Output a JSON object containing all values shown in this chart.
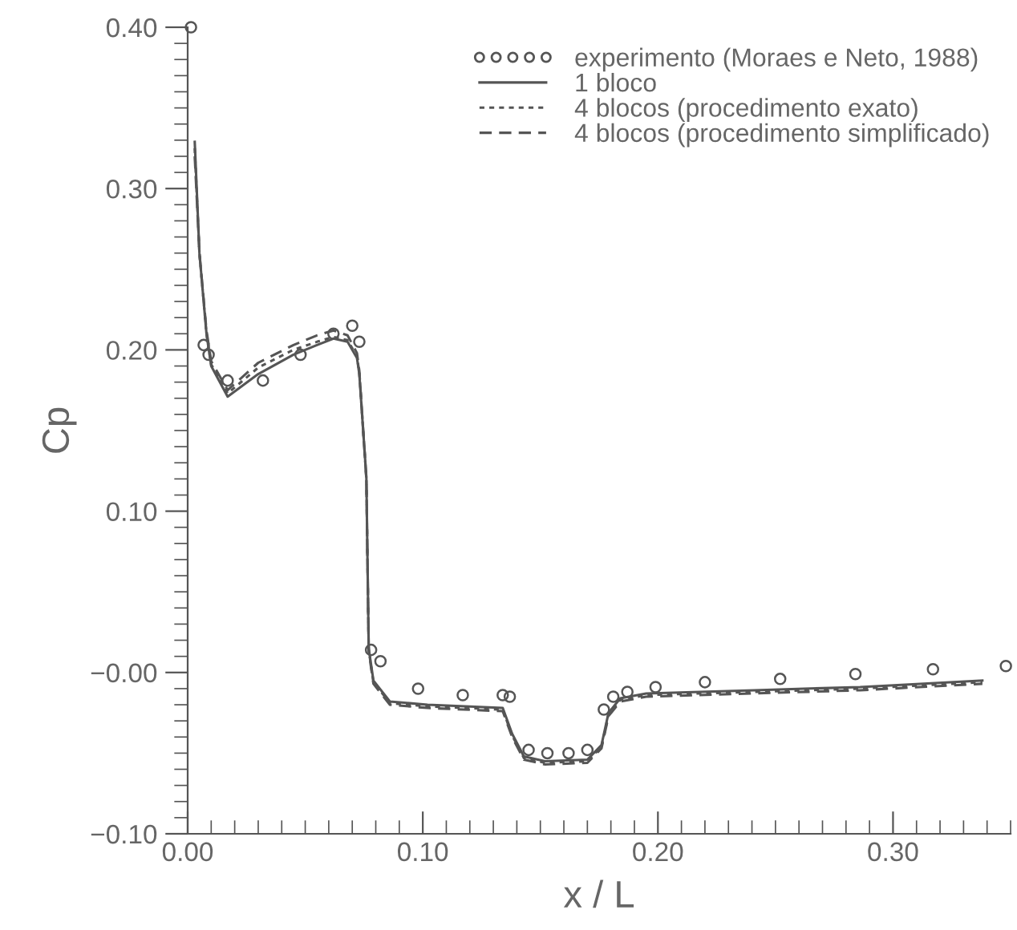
{
  "chart_data": {
    "type": "line",
    "xlabel": "x / L",
    "ylabel": "Cp",
    "legend": "top right",
    "grid": false,
    "xlim": [
      0,
      0.35
    ],
    "ylim": [
      -0.1,
      0.4
    ],
    "xticks": [
      {
        "value": 0,
        "label": "0.00"
      },
      {
        "value": 0.1,
        "label": "0.10"
      },
      {
        "value": 0.2,
        "label": "0.20"
      },
      {
        "value": 0.3,
        "label": "0.30"
      }
    ],
    "yticks": [
      {
        "value": -0.1,
        "label": "−0.10"
      },
      {
        "value": 0,
        "label": "−0.00"
      },
      {
        "value": 0.1,
        "label": "0.10"
      },
      {
        "value": 0.2,
        "label": "0.20"
      },
      {
        "value": 0.3,
        "label": "0.30"
      },
      {
        "value": 0.4,
        "label": "0.40"
      }
    ],
    "series": [
      {
        "name": "experimento (Moraes e Neto, 1988)",
        "type": "scatter",
        "marker": "circle",
        "color": "#555555",
        "x": [
          0.0014,
          0.0068,
          0.0089,
          0.017,
          0.032,
          0.048,
          0.062,
          0.07,
          0.073,
          0.078,
          0.082,
          0.098,
          0.117,
          0.134,
          0.137,
          0.145,
          0.153,
          0.162,
          0.17,
          0.177,
          0.181,
          0.187,
          0.199,
          0.22,
          0.252,
          0.284,
          0.317,
          0.348
        ],
        "values": [
          0.4,
          0.203,
          0.197,
          0.181,
          0.181,
          0.197,
          0.21,
          0.215,
          0.205,
          0.014,
          0.007,
          -0.01,
          -0.014,
          -0.014,
          -0.015,
          -0.048,
          -0.05,
          -0.05,
          -0.048,
          -0.023,
          -0.015,
          -0.012,
          -0.009,
          -0.006,
          -0.004,
          -0.001,
          0.002,
          0.004
        ]
      },
      {
        "name": "1 bloco",
        "line_style": "solid",
        "color": "#555555",
        "x": [
          0.003,
          0.005,
          0.008,
          0.01,
          0.017,
          0.03,
          0.045,
          0.055,
          0.062,
          0.068,
          0.072,
          0.073,
          0.076,
          0.077,
          0.079,
          0.086,
          0.102,
          0.134,
          0.138,
          0.143,
          0.152,
          0.17,
          0.176,
          0.179,
          0.184,
          0.195,
          0.241,
          0.286,
          0.338
        ],
        "values": [
          0.329,
          0.26,
          0.21,
          0.19,
          0.171,
          0.185,
          0.197,
          0.203,
          0.207,
          0.205,
          0.195,
          0.185,
          0.121,
          0.015,
          -0.005,
          -0.018,
          -0.02,
          -0.022,
          -0.038,
          -0.052,
          -0.055,
          -0.054,
          -0.045,
          -0.025,
          -0.016,
          -0.013,
          -0.011,
          -0.009,
          -0.005
        ]
      },
      {
        "name": "4 blocos (procedimento exato)",
        "line_style": "dotted",
        "color": "#555555",
        "x": [
          0.003,
          0.005,
          0.008,
          0.01,
          0.017,
          0.03,
          0.045,
          0.055,
          0.062,
          0.068,
          0.072,
          0.073,
          0.076,
          0.077,
          0.079,
          0.086,
          0.102,
          0.134,
          0.138,
          0.143,
          0.152,
          0.17,
          0.176,
          0.179,
          0.184,
          0.195,
          0.241,
          0.286,
          0.338
        ],
        "values": [
          0.325,
          0.26,
          0.21,
          0.191,
          0.173,
          0.189,
          0.2,
          0.205,
          0.208,
          0.206,
          0.196,
          0.186,
          0.12,
          0.014,
          -0.006,
          -0.019,
          -0.021,
          -0.023,
          -0.039,
          -0.053,
          -0.056,
          -0.055,
          -0.046,
          -0.026,
          -0.017,
          -0.014,
          -0.012,
          -0.01,
          -0.006
        ]
      },
      {
        "name": "4 blocos (procedimento simplificado)",
        "line_style": "dashed",
        "color": "#555555",
        "x": [
          0.003,
          0.005,
          0.008,
          0.01,
          0.017,
          0.03,
          0.045,
          0.055,
          0.062,
          0.068,
          0.072,
          0.073,
          0.076,
          0.077,
          0.079,
          0.086,
          0.102,
          0.134,
          0.138,
          0.143,
          0.152,
          0.17,
          0.176,
          0.179,
          0.184,
          0.195,
          0.241,
          0.286,
          0.338
        ],
        "values": [
          0.32,
          0.26,
          0.212,
          0.193,
          0.175,
          0.192,
          0.203,
          0.209,
          0.212,
          0.209,
          0.198,
          0.187,
          0.12,
          0.013,
          -0.007,
          -0.02,
          -0.022,
          -0.024,
          -0.04,
          -0.054,
          -0.057,
          -0.056,
          -0.047,
          -0.027,
          -0.018,
          -0.015,
          -0.013,
          -0.011,
          -0.007
        ]
      }
    ]
  }
}
